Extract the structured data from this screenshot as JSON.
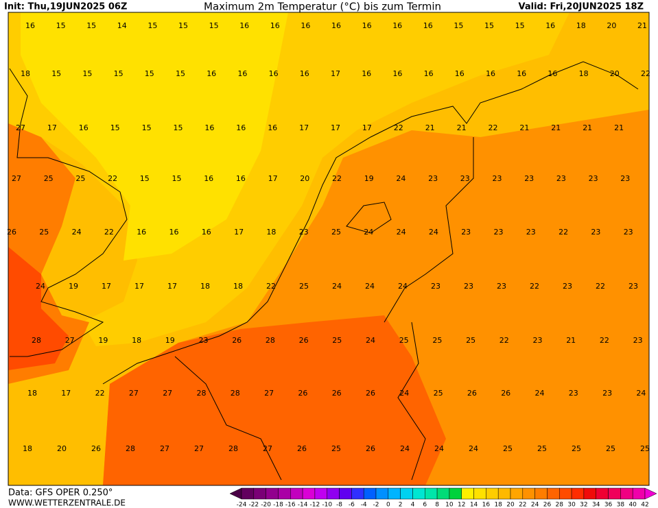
{
  "header": {
    "init": "Init: Thu,19JUN2025 06Z",
    "title": "Maximum 2m Temperatur (°C) bis zum Termin",
    "valid": "Valid: Fri,20JUN2025 18Z"
  },
  "map": {
    "rows": [
      [
        16,
        15,
        15,
        14,
        15,
        15,
        15,
        16,
        16,
        16,
        16,
        16,
        16,
        16,
        15,
        15,
        15,
        16,
        18,
        20,
        21
      ],
      [
        18,
        15,
        15,
        15,
        15,
        15,
        16,
        16,
        16,
        16,
        17,
        16,
        16,
        16,
        16,
        16,
        16,
        16,
        18,
        20,
        22
      ],
      [
        27,
        17,
        16,
        15,
        15,
        15,
        16,
        16,
        16,
        17,
        17,
        17,
        22,
        21,
        21,
        22,
        21,
        21,
        21,
        21
      ],
      [
        27,
        25,
        25,
        22,
        15,
        15,
        16,
        16,
        17,
        20,
        22,
        19,
        24,
        23,
        23,
        23,
        23,
        23,
        23,
        23
      ],
      [
        26,
        25,
        24,
        22,
        16,
        16,
        16,
        17,
        18,
        23,
        25,
        24,
        24,
        24,
        23,
        23,
        23,
        22,
        23,
        23
      ],
      [
        24,
        19,
        17,
        17,
        17,
        18,
        18,
        22,
        25,
        24,
        24,
        24,
        23,
        23,
        23,
        22,
        23,
        22,
        23
      ],
      [
        28,
        27,
        19,
        18,
        19,
        23,
        26,
        28,
        26,
        25,
        24,
        25,
        25,
        25,
        22,
        23,
        21,
        22,
        23
      ],
      [
        18,
        17,
        22,
        27,
        27,
        28,
        28,
        27,
        26,
        26,
        26,
        24,
        25,
        26,
        26,
        24,
        23,
        23,
        24
      ],
      [
        18,
        20,
        26,
        28,
        27,
        27,
        28,
        27,
        26,
        25,
        26,
        24,
        24,
        24,
        25,
        25,
        25,
        25,
        25
      ]
    ]
  },
  "legend": {
    "levels": [
      -24,
      -22,
      -20,
      -18,
      -16,
      -14,
      -12,
      -10,
      -8,
      -6,
      -4,
      -2,
      0,
      2,
      4,
      6,
      8,
      10,
      12,
      14,
      16,
      18,
      20,
      22,
      24,
      26,
      28,
      30,
      32,
      34,
      36,
      38,
      40,
      42
    ],
    "colors": [
      "#4a0046",
      "#62005e",
      "#7a0076",
      "#92008e",
      "#aa00a6",
      "#c200be",
      "#da00d6",
      "#c000f0",
      "#9000f0",
      "#6000f0",
      "#3030ff",
      "#0060ff",
      "#0090ff",
      "#00b4ff",
      "#00d2f0",
      "#00e6d2",
      "#00e6aa",
      "#00dc78",
      "#00d23c",
      "#fff000",
      "#ffe100",
      "#ffcd00",
      "#ffb900",
      "#ffa500",
      "#ff9100",
      "#ff7d00",
      "#ff6400",
      "#ff4b00",
      "#ff2d00",
      "#f00a0a",
      "#f00032",
      "#f0005a",
      "#f00082",
      "#f000aa",
      "#f000d2"
    ]
  },
  "footer": {
    "data": "Data: GFS OPER 0.250°",
    "site": "WWW.WETTERZENTRALE.DE"
  }
}
